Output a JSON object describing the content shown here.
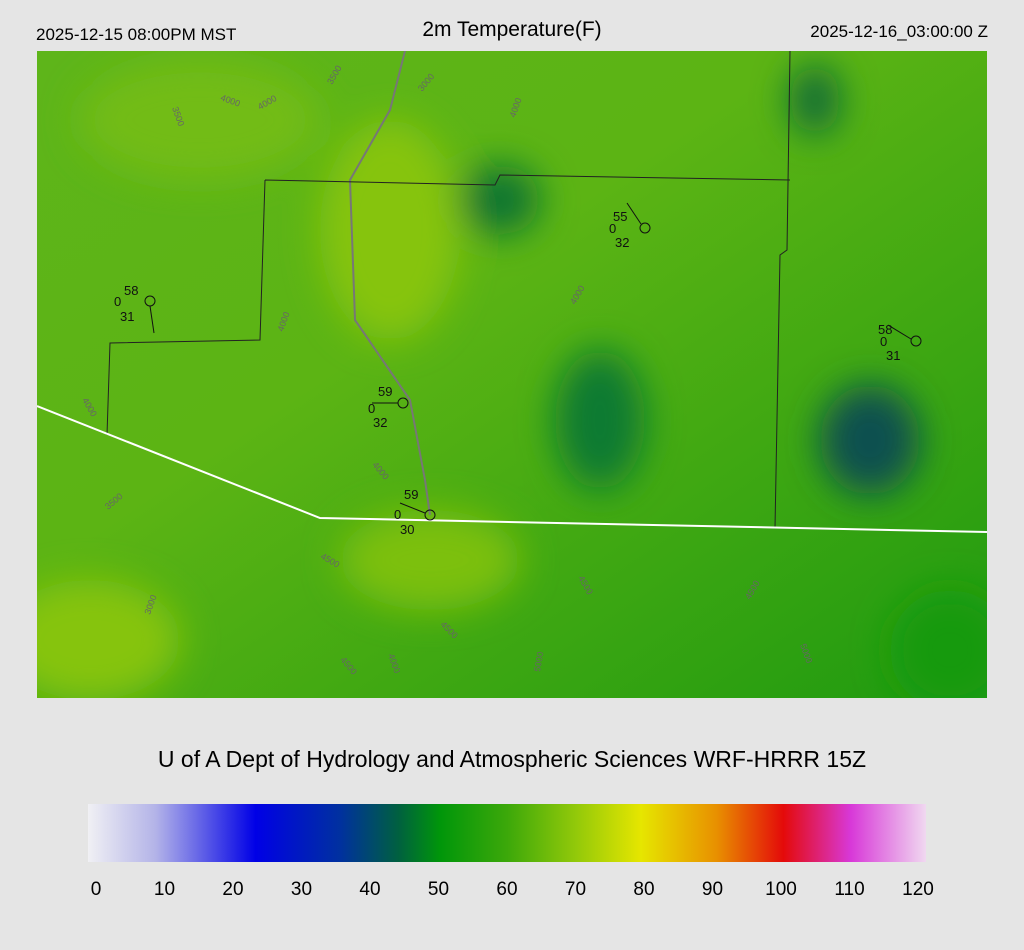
{
  "header": {
    "local_time": "2025-12-15 08:00PM MST",
    "title": "2m Temperature(F)",
    "valid_time": "2025-12-16_03:00:00 Z"
  },
  "stations": [
    {
      "temp": 58,
      "wind": 0,
      "dewpoint": 31
    },
    {
      "temp": 55,
      "wind": 0,
      "dewpoint": 32
    },
    {
      "temp": 58,
      "wind": 0,
      "dewpoint": 31
    },
    {
      "temp": 59,
      "wind": 0,
      "dewpoint": 32
    },
    {
      "temp": 59,
      "wind": 0,
      "dewpoint": 30
    }
  ],
  "contour_labels": [
    4000,
    4000,
    3500,
    3000,
    3500,
    4000,
    4000,
    4000,
    4000,
    3500,
    4500,
    4500,
    4500,
    5000,
    4500,
    4000,
    3000,
    4000,
    4500,
    5000
  ],
  "credit": "U of A Dept of Hydrology and Atmospheric Sciences WRF-HRRR 15Z",
  "colorbar": {
    "ticks": [
      0,
      10,
      20,
      30,
      40,
      50,
      60,
      70,
      80,
      90,
      100,
      110,
      120
    ]
  }
}
